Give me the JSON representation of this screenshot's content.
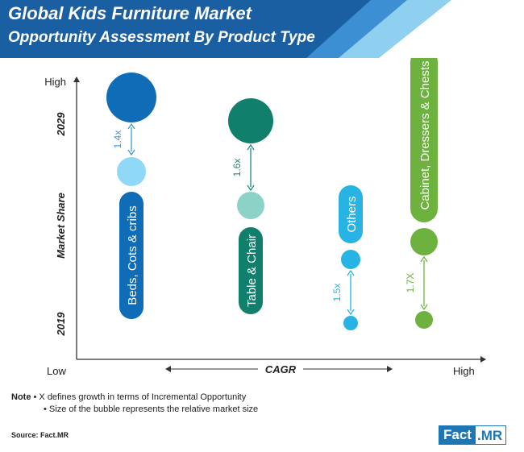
{
  "header": {
    "title": "Global Kids Furniture Market",
    "subtitle": "Opportunity Assessment By Product Type",
    "colors": {
      "dark": "#1b5fa3",
      "mid": "#3d8fd4",
      "light": "#8fd0f0"
    }
  },
  "chart_data": {
    "type": "bubble",
    "title": "Global Kids Furniture Market",
    "subtitle": "Opportunity Assessment By Product Type",
    "xlabel": "CAGR",
    "ylabel": "Market Share",
    "x_low_label": "Low",
    "x_high_label": "High",
    "y_high_label": "High",
    "y_year_top": "2029",
    "y_year_bottom": "2019",
    "grid": false,
    "legend": "none",
    "series": [
      {
        "name": "Beds, Cots & cribs",
        "growth_label": "1.4x",
        "color_2029": "#0f6cb6",
        "color_2019": "#8fd8f6",
        "label_color": "#0f6cb6",
        "growth_color": "#3a9bd6"
      },
      {
        "name": "Table & Chair",
        "growth_label": "1.6x",
        "color_2029": "#10806d",
        "color_2019": "#8dd2c7",
        "label_color": "#10806d",
        "growth_color": "#1a8a76"
      },
      {
        "name": "Others",
        "growth_label": "1.5x",
        "color_2029": "#27b3e3",
        "color_2019": "#27b3e3",
        "label_color": "#27b3e3",
        "growth_color": "#27b3e3"
      },
      {
        "name": "Cabinet, Dressers & Chests",
        "growth_label": "1.7X",
        "color_2029": "#6db23f",
        "color_2019": "#6db23f",
        "label_color": "#6db23f",
        "growth_color": "#6db23f"
      }
    ]
  },
  "notes": {
    "label": "Note",
    "line1": "• X defines growth in terms of Incremental Opportunity",
    "line2": "• Size of the bubble represents the relative market size"
  },
  "source": "Source: Fact.MR",
  "logo": {
    "part1": "Fact",
    "part2": ".MR"
  }
}
